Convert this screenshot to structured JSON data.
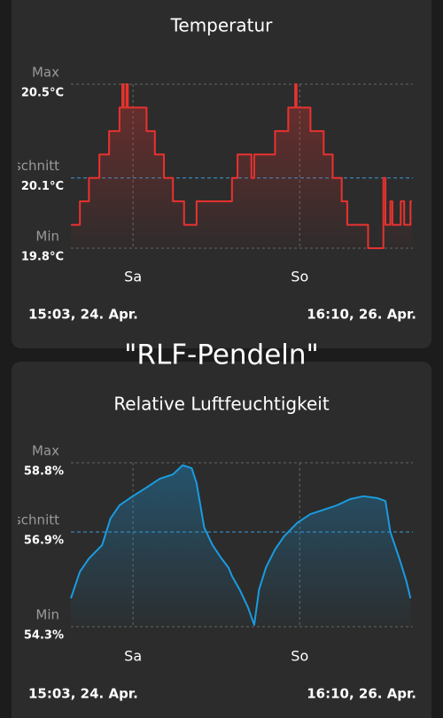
{
  "caption": "\"RLF-Pendeln\"",
  "chart_data": [
    {
      "type": "line",
      "title": "Temperatur",
      "color": "#e8322f",
      "average_color": "#3a9ad9",
      "grid": true,
      "x": [
        0,
        1.3,
        1.3,
        2.6,
        2.6,
        4.1,
        4.1,
        5.5,
        5.5,
        7.0,
        7.0,
        7.4,
        7.4,
        7.6,
        7.6,
        8.0,
        8.0,
        8.2,
        8.2,
        10.9,
        10.9,
        12.1,
        12.1,
        13.4,
        13.4,
        14.7,
        14.7,
        16.3,
        16.3,
        18.1,
        18.1,
        23.2,
        23.2,
        24.0,
        24.0,
        26.0,
        26.0,
        26.4,
        26.4,
        27.5,
        29.4,
        29.4,
        31.3,
        31.3,
        32.3,
        32.3,
        32.5,
        32.5,
        34.5,
        34.5,
        36.4,
        36.4,
        37.7,
        37.7,
        39.0,
        39.0,
        39.8,
        39.8,
        42.8,
        42.8,
        45.0,
        45.0,
        45.3,
        45.3,
        46.0,
        46.0,
        46.3,
        46.3,
        47.5,
        47.5,
        48.0,
        48.0,
        48.9,
        48.9,
        49.1
      ],
      "values": [
        19.9,
        19.9,
        20.0,
        20.0,
        20.1,
        20.1,
        20.2,
        20.2,
        20.3,
        20.3,
        20.4,
        20.4,
        20.5,
        20.5,
        20.4,
        20.4,
        20.5,
        20.5,
        20.4,
        20.4,
        20.3,
        20.3,
        20.2,
        20.2,
        20.1,
        20.1,
        20.0,
        20.0,
        19.9,
        19.9,
        20.0,
        20.0,
        20.1,
        20.1,
        20.2,
        20.2,
        20.1,
        20.1,
        20.2,
        20.2,
        20.2,
        20.3,
        20.3,
        20.4,
        20.4,
        20.5,
        20.5,
        20.4,
        20.4,
        20.3,
        20.3,
        20.2,
        20.2,
        20.1,
        20.1,
        20.0,
        20.0,
        19.9,
        19.9,
        19.8,
        19.8,
        20.1,
        20.1,
        19.9,
        19.9,
        20.0,
        20.0,
        19.9,
        19.9,
        20.0,
        20.0,
        19.9,
        19.9,
        20.0,
        20.0
      ],
      "xlim": [
        0,
        49.12
      ],
      "xticks": [
        {
          "value": 8.95,
          "label": "Sa"
        },
        {
          "value": 32.95,
          "label": "So"
        }
      ],
      "range_labels": [
        "15:03,  24. Apr.",
        "16:10,  26. Apr."
      ],
      "ylim": [
        19.8,
        20.5
      ],
      "yticks": [
        {
          "value": 19.8,
          "label": "19.8°C"
        },
        {
          "value": 20.1,
          "label": "20.1°C"
        },
        {
          "value": 20.5,
          "label": "20.5°C"
        }
      ],
      "ytick_names": [
        "Min",
        "Durchschnitt",
        "Max"
      ]
    },
    {
      "type": "line",
      "title": "Relative Luftfeuchtigkeit",
      "color": "#1a9be0",
      "average_color": "#3a9ad9",
      "grid": true,
      "x": [
        0,
        1.3,
        2.6,
        4.5,
        5.7,
        7.0,
        8.9,
        10.9,
        12.8,
        14.7,
        16.1,
        17.4,
        18.1,
        19.2,
        20.4,
        21.7,
        22.7,
        23.2,
        24.3,
        25.5,
        26.4,
        27.1,
        28.1,
        29.4,
        30.7,
        32.6,
        34.5,
        36.4,
        38.3,
        40.2,
        42.1,
        44.1,
        45.3,
        46.0,
        47.3,
        48.3,
        48.9
      ],
      "values": [
        55.08,
        55.81,
        56.17,
        56.54,
        57.27,
        57.63,
        57.88,
        58.12,
        58.36,
        58.48,
        58.73,
        58.65,
        58.24,
        57.02,
        56.54,
        56.17,
        55.92,
        55.69,
        55.32,
        54.83,
        54.35,
        55.32,
        55.93,
        56.42,
        56.78,
        57.15,
        57.39,
        57.51,
        57.63,
        57.8,
        57.88,
        57.83,
        57.75,
        56.9,
        56.17,
        55.56,
        55.08
      ],
      "xlim": [
        0,
        49.12
      ],
      "xticks": [
        {
          "value": 8.95,
          "label": "Sa"
        },
        {
          "value": 32.95,
          "label": "So"
        }
      ],
      "range_labels": [
        "15:03,  24. Apr.",
        "16:10,  26. Apr."
      ],
      "ylim": [
        54.3,
        58.8
      ],
      "yticks": [
        {
          "value": 54.3,
          "label": "54.3%"
        },
        {
          "value": 56.9,
          "label": "56.9%"
        },
        {
          "value": 58.8,
          "label": "58.8%"
        }
      ],
      "ytick_names": [
        "Min",
        "Durchschnitt",
        "Max"
      ]
    }
  ]
}
